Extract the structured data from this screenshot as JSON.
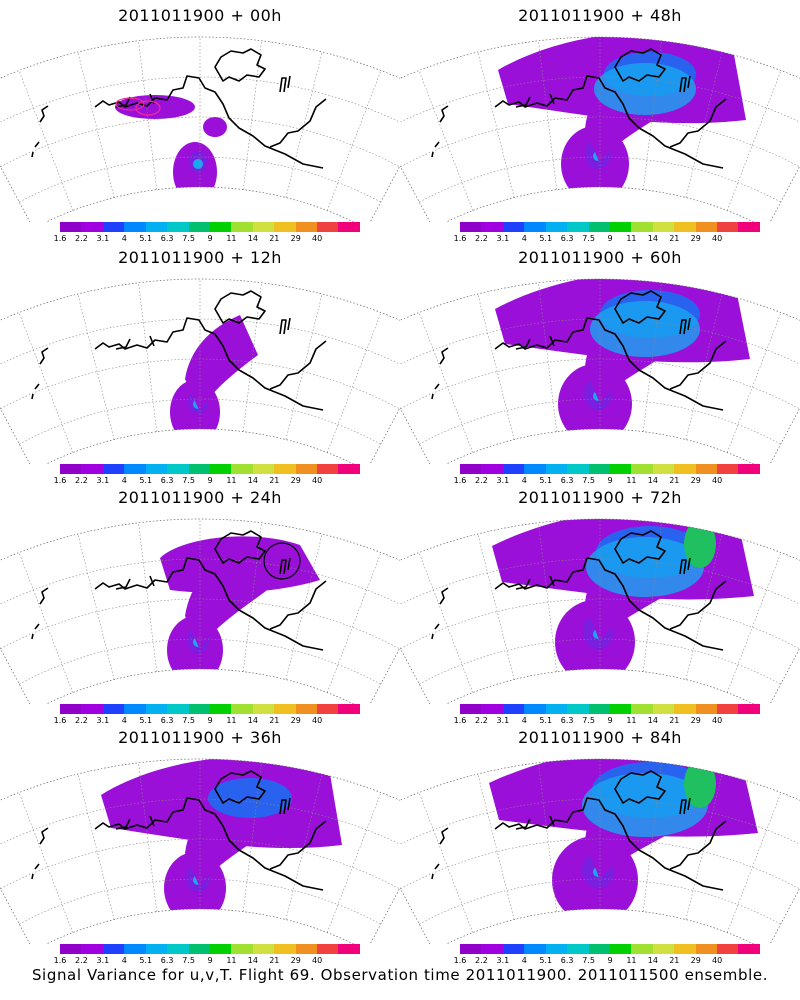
{
  "panels": [
    {
      "title": "2011011900 + 00h",
      "stage": 0,
      "circles": "magenta"
    },
    {
      "title": "2011011900 + 48h",
      "stage": 4
    },
    {
      "title": "2011011900 + 12h",
      "stage": 1
    },
    {
      "title": "2011011900 + 60h",
      "stage": 5
    },
    {
      "title": "2011011900 + 24h",
      "stage": 2,
      "circles": "black"
    },
    {
      "title": "2011011900 + 72h",
      "stage": 6
    },
    {
      "title": "2011011900 + 36h",
      "stage": 3
    },
    {
      "title": "2011011900 + 84h",
      "stage": 7
    }
  ],
  "colorbar": {
    "labels": [
      "1.6",
      "2.2",
      "3.1",
      "4",
      "5.1",
      "6.3",
      "7.5",
      "9",
      "11",
      "14",
      "21",
      "29",
      "40"
    ],
    "colors": [
      "#8f00c8",
      "#a000e0",
      "#2040ff",
      "#0088ff",
      "#00b0f0",
      "#00c8c8",
      "#00c070",
      "#00d000",
      "#a0e030",
      "#d0e040",
      "#f0c020",
      "#f09020",
      "#f04040",
      "#f0007a"
    ]
  },
  "caption": "Signal Variance for u,v,T. Flight 69. Observation time 2011011900. 2011011500 ensemble."
}
